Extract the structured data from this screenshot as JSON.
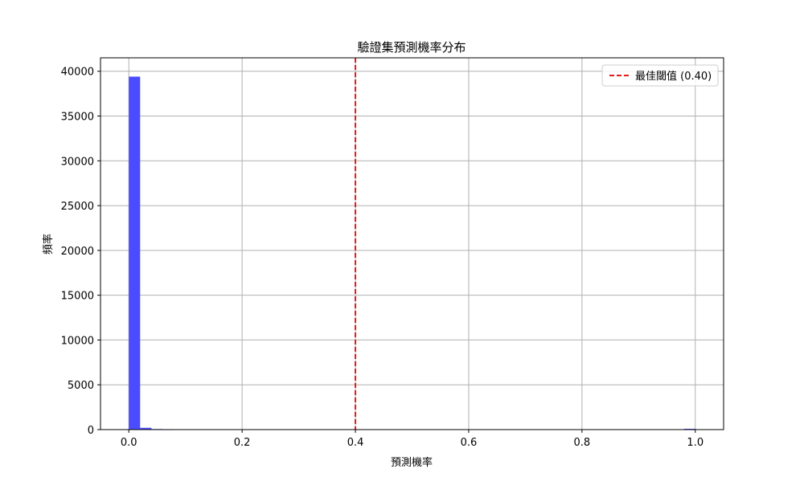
{
  "chart_data": {
    "type": "bar",
    "title": "驗證集預測機率分布",
    "xlabel": "預測機率",
    "ylabel": "頻率",
    "xlim": [
      -0.05,
      1.05
    ],
    "ylim": [
      0,
      41500
    ],
    "x_ticks": [
      0.0,
      0.2,
      0.4,
      0.6,
      0.8,
      1.0
    ],
    "x_tick_labels": [
      "0.0",
      "0.2",
      "0.4",
      "0.6",
      "0.8",
      "1.0"
    ],
    "y_ticks": [
      0,
      5000,
      10000,
      15000,
      20000,
      25000,
      30000,
      35000,
      40000
    ],
    "y_tick_labels": [
      "0",
      "5000",
      "10000",
      "15000",
      "20000",
      "25000",
      "30000",
      "35000",
      "40000"
    ],
    "grid": true,
    "legend_position": "top-right",
    "bar_color": "#4b4bff",
    "bins": [
      {
        "x0": 0.0,
        "x1": 0.02,
        "value": 39400
      },
      {
        "x0": 0.02,
        "x1": 0.04,
        "value": 200
      },
      {
        "x0": 0.04,
        "x1": 0.06,
        "value": 60
      },
      {
        "x0": 0.06,
        "x1": 0.08,
        "value": 40
      },
      {
        "x0": 0.98,
        "x1": 1.0,
        "value": 90
      }
    ],
    "threshold": {
      "value": 0.4,
      "label": "最佳閾值 (0.40)",
      "color": "#e41a1c",
      "style": "dashed"
    }
  }
}
